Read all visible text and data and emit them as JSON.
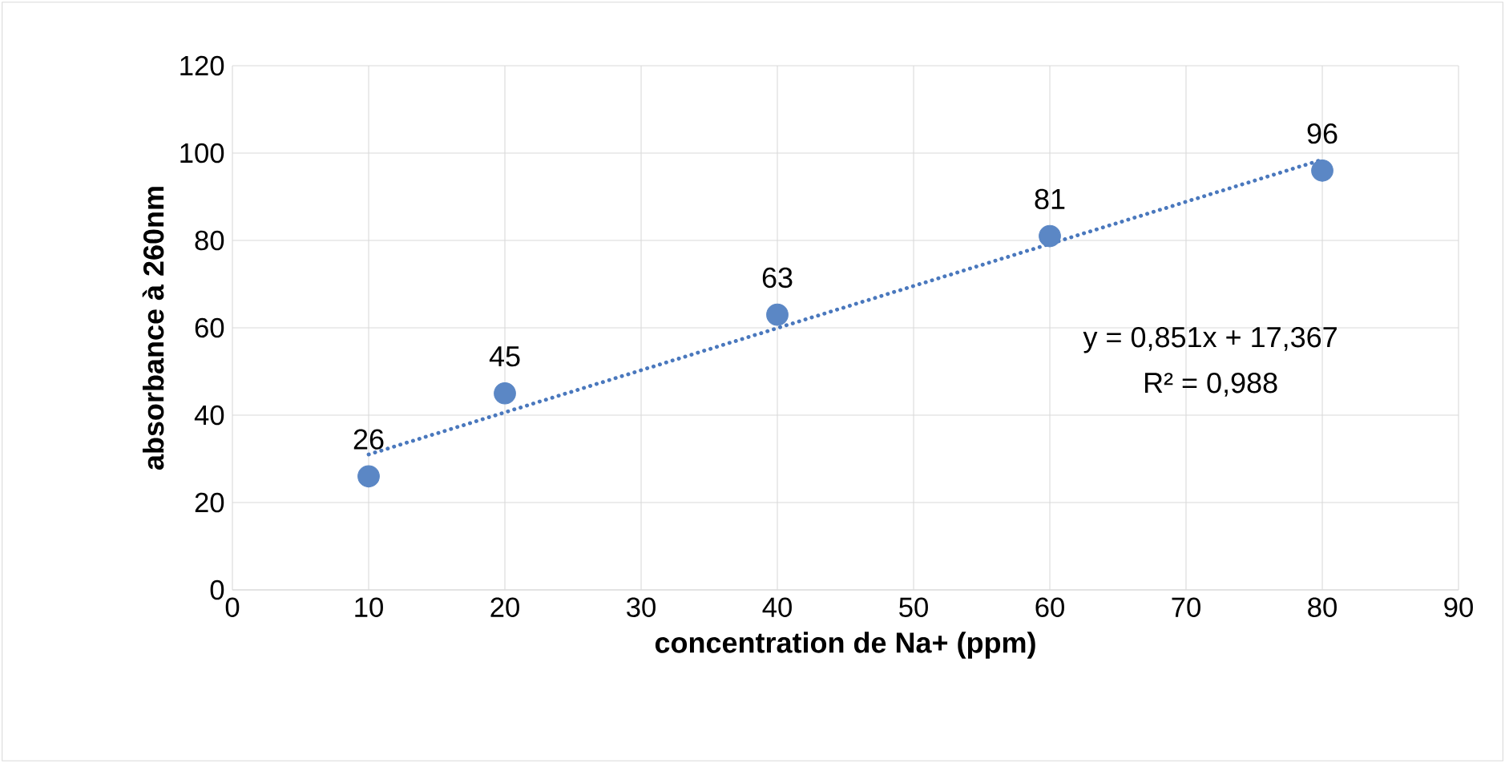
{
  "chart_data": {
    "type": "scatter",
    "xlabel": "concentration de Na+ (ppm)",
    "ylabel": "absorbance à 260nm",
    "xlim": [
      0,
      90
    ],
    "xticks": [
      0,
      10,
      20,
      30,
      40,
      50,
      60,
      70,
      80,
      90
    ],
    "ylim": [
      0,
      120
    ],
    "yticks": [
      0,
      20,
      40,
      60,
      80,
      100,
      120
    ],
    "grid": true,
    "series": [
      {
        "color": "#5b87c5",
        "x": [
          10,
          20,
          40,
          60,
          80
        ],
        "values": [
          26,
          45,
          63,
          81,
          96
        ],
        "marker": "circle",
        "data_labels": true
      },
      {
        "type": "line",
        "color": "#4a78bd",
        "x": [
          10,
          80
        ],
        "values": [
          31,
          98.5
        ],
        "marker": "none",
        "line_style": "dotted"
      }
    ],
    "annotations": [
      "y = 0,851x + 17,367",
      "R² = 0,988"
    ]
  }
}
